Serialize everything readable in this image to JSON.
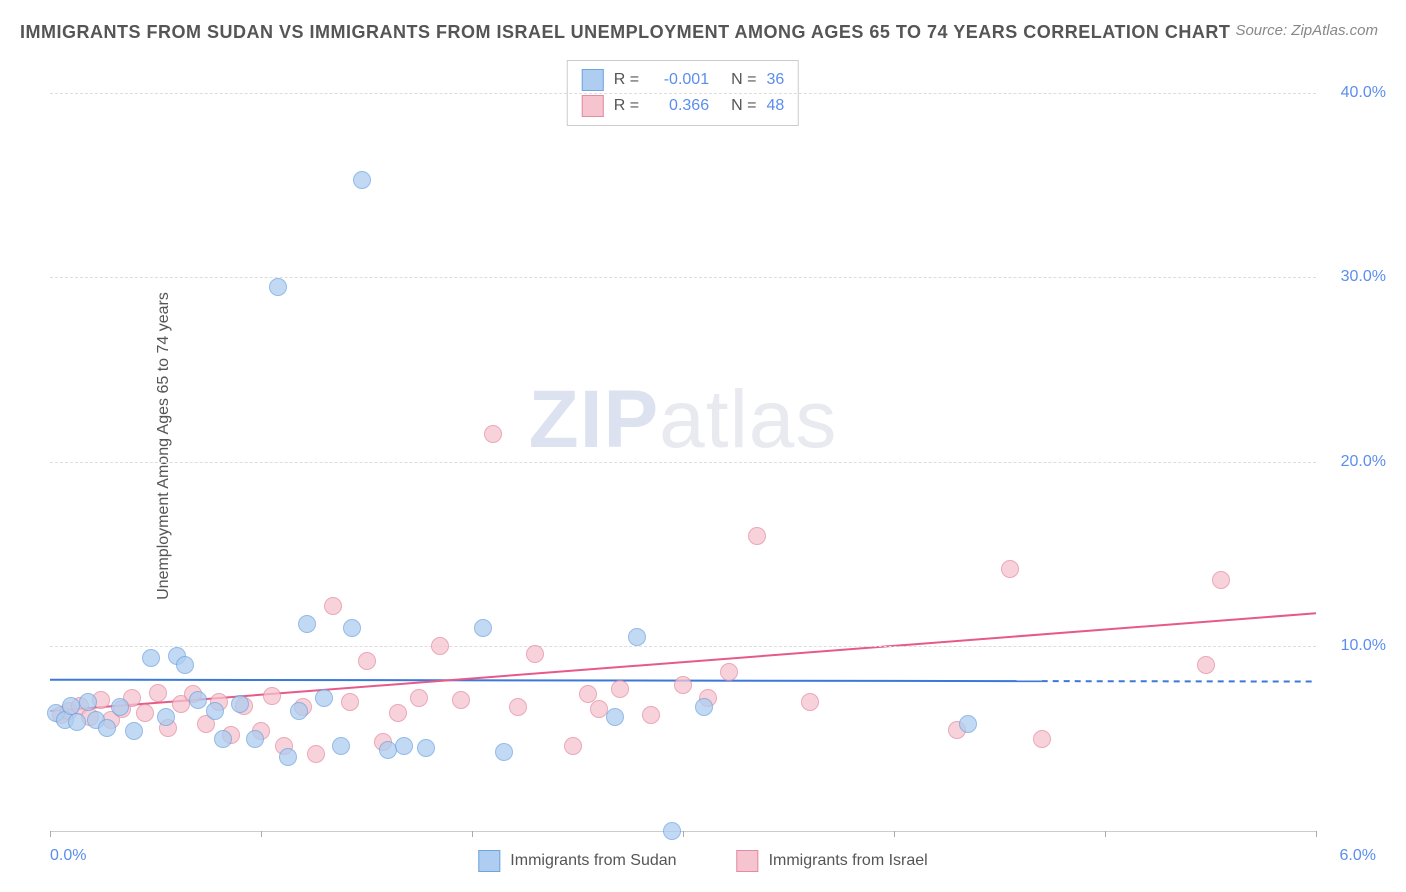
{
  "title": "IMMIGRANTS FROM SUDAN VS IMMIGRANTS FROM ISRAEL UNEMPLOYMENT AMONG AGES 65 TO 74 YEARS CORRELATION CHART",
  "source": "Source: ZipAtlas.com",
  "y_axis_label": "Unemployment Among Ages 65 to 74 years",
  "watermark_parts": {
    "bold": "ZIP",
    "light": "atlas"
  },
  "colors": {
    "series1_fill": "#aecdf0",
    "series1_stroke": "#6fa4de",
    "series2_fill": "#f6c4cf",
    "series2_stroke": "#e38ba0",
    "trend1": "#3b78d8",
    "trend2": "#e65a8a",
    "grid": "#dddddd",
    "tick_text": "#5b8def"
  },
  "chart": {
    "type": "scatter",
    "xlim": [
      0.0,
      6.0
    ],
    "ylim": [
      0.0,
      42.0
    ],
    "y_ticks": [
      10.0,
      20.0,
      30.0,
      40.0
    ],
    "y_tick_labels": [
      "10.0%",
      "20.0%",
      "30.0%",
      "40.0%"
    ],
    "x_ticks": [
      0.0,
      1.0,
      2.0,
      3.0,
      4.0,
      5.0,
      6.0
    ],
    "x_label_min": "0.0%",
    "x_label_max": "6.0%",
    "marker_radius": 9,
    "marker_opacity": 0.75,
    "line_width": 2
  },
  "legend_top": [
    {
      "r": "-0.001",
      "n": "36",
      "swatch": "series1"
    },
    {
      "r": "0.366",
      "n": "48",
      "swatch": "series2"
    }
  ],
  "legend_bottom": [
    {
      "label": "Immigrants from Sudan",
      "swatch": "series1"
    },
    {
      "label": "Immigrants from Israel",
      "swatch": "series2"
    }
  ],
  "trend_lines": {
    "series1": {
      "y_at_x0": 8.2,
      "y_at_x6": 8.1,
      "solid_until_x": 4.7
    },
    "series2": {
      "y_at_x0": 6.5,
      "y_at_x6": 11.8,
      "solid_until_x": 6.0
    }
  },
  "series1_points": [
    {
      "x": 0.03,
      "y": 6.4
    },
    {
      "x": 0.07,
      "y": 6.0
    },
    {
      "x": 0.1,
      "y": 6.8
    },
    {
      "x": 0.13,
      "y": 5.9
    },
    {
      "x": 0.18,
      "y": 7.0
    },
    {
      "x": 0.22,
      "y": 6.0
    },
    {
      "x": 0.27,
      "y": 5.6
    },
    {
      "x": 0.33,
      "y": 6.7
    },
    {
      "x": 0.4,
      "y": 5.4
    },
    {
      "x": 0.48,
      "y": 9.4
    },
    {
      "x": 0.55,
      "y": 6.2
    },
    {
      "x": 0.6,
      "y": 9.5
    },
    {
      "x": 0.64,
      "y": 9.0
    },
    {
      "x": 0.7,
      "y": 7.1
    },
    {
      "x": 0.78,
      "y": 6.5
    },
    {
      "x": 0.82,
      "y": 5.0
    },
    {
      "x": 0.9,
      "y": 6.9
    },
    {
      "x": 0.97,
      "y": 5.0
    },
    {
      "x": 1.08,
      "y": 29.5
    },
    {
      "x": 1.13,
      "y": 4.0
    },
    {
      "x": 1.18,
      "y": 6.5
    },
    {
      "x": 1.22,
      "y": 11.2
    },
    {
      "x": 1.3,
      "y": 7.2
    },
    {
      "x": 1.38,
      "y": 4.6
    },
    {
      "x": 1.43,
      "y": 11.0
    },
    {
      "x": 1.48,
      "y": 35.3
    },
    {
      "x": 1.6,
      "y": 4.4
    },
    {
      "x": 1.68,
      "y": 4.6
    },
    {
      "x": 1.78,
      "y": 4.5
    },
    {
      "x": 2.05,
      "y": 11.0
    },
    {
      "x": 2.15,
      "y": 4.3
    },
    {
      "x": 2.78,
      "y": 10.5
    },
    {
      "x": 2.95,
      "y": 0.0
    },
    {
      "x": 2.68,
      "y": 6.2
    },
    {
      "x": 4.35,
      "y": 5.8
    },
    {
      "x": 3.1,
      "y": 6.7
    }
  ],
  "series2_points": [
    {
      "x": 0.05,
      "y": 6.3
    },
    {
      "x": 0.09,
      "y": 6.5
    },
    {
      "x": 0.14,
      "y": 6.8
    },
    {
      "x": 0.19,
      "y": 6.2
    },
    {
      "x": 0.24,
      "y": 7.1
    },
    {
      "x": 0.29,
      "y": 6.0
    },
    {
      "x": 0.34,
      "y": 6.6
    },
    {
      "x": 0.39,
      "y": 7.2
    },
    {
      "x": 0.45,
      "y": 6.4
    },
    {
      "x": 0.51,
      "y": 7.5
    },
    {
      "x": 0.56,
      "y": 5.6
    },
    {
      "x": 0.62,
      "y": 6.9
    },
    {
      "x": 0.68,
      "y": 7.4
    },
    {
      "x": 0.74,
      "y": 5.8
    },
    {
      "x": 0.8,
      "y": 7.0
    },
    {
      "x": 0.86,
      "y": 5.2
    },
    {
      "x": 0.92,
      "y": 6.8
    },
    {
      "x": 1.0,
      "y": 5.4
    },
    {
      "x": 1.05,
      "y": 7.3
    },
    {
      "x": 1.11,
      "y": 4.6
    },
    {
      "x": 1.2,
      "y": 6.7
    },
    {
      "x": 1.26,
      "y": 4.2
    },
    {
      "x": 1.34,
      "y": 12.2
    },
    {
      "x": 1.42,
      "y": 7.0
    },
    {
      "x": 1.5,
      "y": 9.2
    },
    {
      "x": 1.58,
      "y": 4.8
    },
    {
      "x": 1.65,
      "y": 6.4
    },
    {
      "x": 1.75,
      "y": 7.2
    },
    {
      "x": 1.85,
      "y": 10.0
    },
    {
      "x": 1.95,
      "y": 7.1
    },
    {
      "x": 2.1,
      "y": 21.5
    },
    {
      "x": 2.22,
      "y": 6.7
    },
    {
      "x": 2.3,
      "y": 9.6
    },
    {
      "x": 2.48,
      "y": 4.6
    },
    {
      "x": 2.55,
      "y": 7.4
    },
    {
      "x": 2.6,
      "y": 6.6
    },
    {
      "x": 2.7,
      "y": 7.7
    },
    {
      "x": 2.85,
      "y": 6.3
    },
    {
      "x": 3.0,
      "y": 7.9
    },
    {
      "x": 3.12,
      "y": 7.2
    },
    {
      "x": 3.22,
      "y": 8.6
    },
    {
      "x": 3.35,
      "y": 16.0
    },
    {
      "x": 4.3,
      "y": 5.5
    },
    {
      "x": 4.55,
      "y": 14.2
    },
    {
      "x": 4.7,
      "y": 5.0
    },
    {
      "x": 5.48,
      "y": 9.0
    },
    {
      "x": 5.55,
      "y": 13.6
    },
    {
      "x": 3.6,
      "y": 7.0
    }
  ]
}
